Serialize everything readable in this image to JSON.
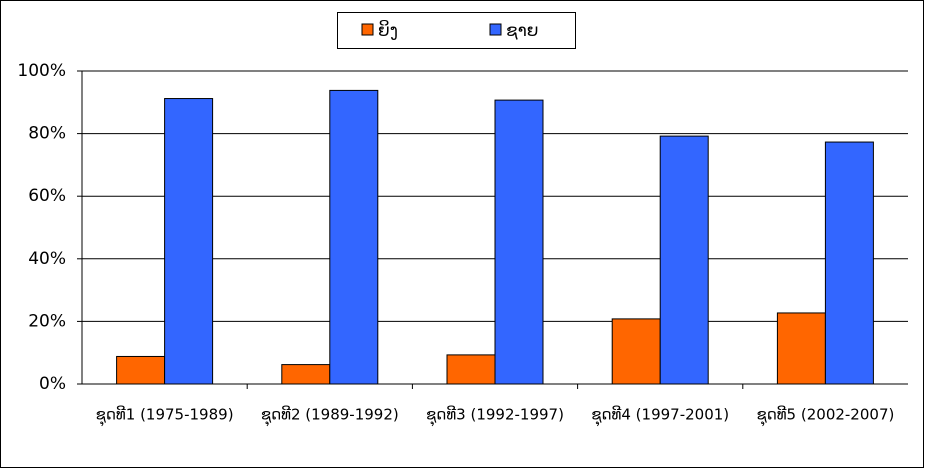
{
  "chart_data": {
    "type": "bar",
    "categories": [
      "ຊຸດທີ1 (1975-1989)",
      "ຊຸດທີ2 (1989-1992)",
      "ຊຸດທີ3 (1992-1997)",
      "ຊຸດທີ4 (1997-2001)",
      "ຊຸດທີ5 (2002-2007)"
    ],
    "series": [
      {
        "name": "ຍິງ",
        "color": "#ff6600",
        "values": [
          8.8,
          6.2,
          9.3,
          20.8,
          22.7
        ]
      },
      {
        "name": "ຊາຍ",
        "color": "#3366ff",
        "values": [
          91.2,
          93.8,
          90.7,
          79.2,
          77.3
        ]
      }
    ],
    "ylim": [
      0,
      100
    ],
    "yticks": [
      {
        "value": 0,
        "label": "0%"
      },
      {
        "value": 20,
        "label": "20%"
      },
      {
        "value": 40,
        "label": "40%"
      },
      {
        "value": 60,
        "label": "60%"
      },
      {
        "value": 80,
        "label": "80%"
      },
      {
        "value": 100,
        "label": "100%"
      }
    ],
    "grid": true,
    "legend": "top"
  }
}
